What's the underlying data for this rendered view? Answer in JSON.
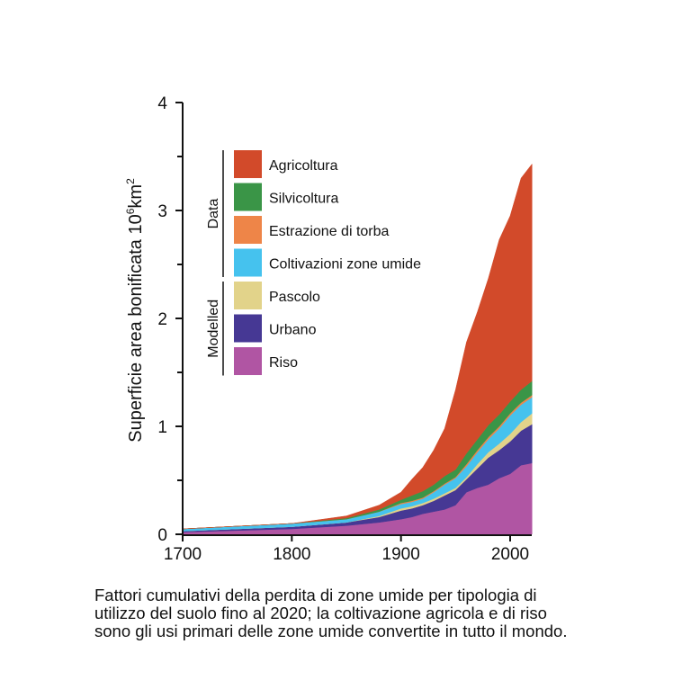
{
  "chart_data": {
    "type": "area",
    "stacked": true,
    "xlabel": "",
    "ylabel": "Superficie area bonificata 10⁶km²",
    "ylabel_main": "Superficie area bonificata 10",
    "ylabel_sup": "6",
    "ylabel_unit": "km",
    "ylabel_unit_sup": "2",
    "xlim": [
      1700,
      2020
    ],
    "ylim": [
      0,
      4
    ],
    "xticks": [
      1700,
      1800,
      1900,
      2000
    ],
    "yticks": [
      0,
      1,
      2,
      3,
      4
    ],
    "yminor_ticks": [
      0.5,
      1.5,
      2.5,
      3.5
    ],
    "grid": false,
    "legend_position": "top-left",
    "legend_groups": [
      {
        "label": "Data",
        "series": [
          "Agricoltura",
          "Silvicoltura",
          "Estrazione di torba",
          "Coltivazioni zone umide"
        ]
      },
      {
        "label": "Modelled",
        "series": [
          "Pascolo",
          "Urbano",
          "Riso"
        ]
      }
    ],
    "x": [
      1700,
      1800,
      1850,
      1880,
      1900,
      1910,
      1920,
      1930,
      1940,
      1950,
      1960,
      1970,
      1980,
      1990,
      2000,
      2010,
      2020
    ],
    "series": [
      {
        "name": "Riso",
        "color": "#b055a3",
        "values": [
          0.02,
          0.05,
          0.08,
          0.11,
          0.14,
          0.16,
          0.19,
          0.21,
          0.23,
          0.27,
          0.39,
          0.43,
          0.46,
          0.52,
          0.56,
          0.64,
          0.66
        ]
      },
      {
        "name": "Urbano",
        "color": "#463894",
        "values": [
          0.01,
          0.02,
          0.03,
          0.05,
          0.08,
          0.08,
          0.08,
          0.1,
          0.13,
          0.14,
          0.12,
          0.18,
          0.25,
          0.26,
          0.3,
          0.32,
          0.36
        ]
      },
      {
        "name": "Pascolo",
        "color": "#e2d38a",
        "values": [
          0,
          0,
          0,
          0.01,
          0.02,
          0.02,
          0.02,
          0.02,
          0.02,
          0.02,
          0.02,
          0.04,
          0.05,
          0.06,
          0.07,
          0.08,
          0.1
        ]
      },
      {
        "name": "Coltivazioni zone umide",
        "color": "#45c2ee",
        "values": [
          0.02,
          0.03,
          0.03,
          0.04,
          0.04,
          0.04,
          0.04,
          0.06,
          0.08,
          0.09,
          0.1,
          0.11,
          0.12,
          0.14,
          0.17,
          0.16,
          0.15
        ]
      },
      {
        "name": "Estrazione di torba",
        "color": "#ee8548",
        "values": [
          0,
          0,
          0,
          0,
          0.01,
          0.01,
          0.01,
          0.01,
          0.01,
          0.01,
          0.02,
          0.02,
          0.02,
          0.02,
          0.02,
          0.02,
          0.02
        ]
      },
      {
        "name": "Silvicoltura",
        "color": "#3a9547",
        "values": [
          0,
          0,
          0.01,
          0.02,
          0.03,
          0.05,
          0.06,
          0.06,
          0.07,
          0.07,
          0.1,
          0.1,
          0.11,
          0.11,
          0.11,
          0.12,
          0.13
        ]
      },
      {
        "name": "Agricoltura",
        "color": "#d24a2a",
        "values": [
          0,
          0,
          0.02,
          0.04,
          0.07,
          0.15,
          0.22,
          0.32,
          0.44,
          0.74,
          1.03,
          1.18,
          1.36,
          1.62,
          1.72,
          1.96,
          2.01
        ]
      }
    ]
  },
  "caption": [
    "Fattori cumulativi della perdita di zone umide per tipologia di",
    "utilizzo del suolo fino al 2020; la coltivazione agricola e di riso",
    "sono gli usi primari delle zone umide convertite in tutto il mondo."
  ]
}
